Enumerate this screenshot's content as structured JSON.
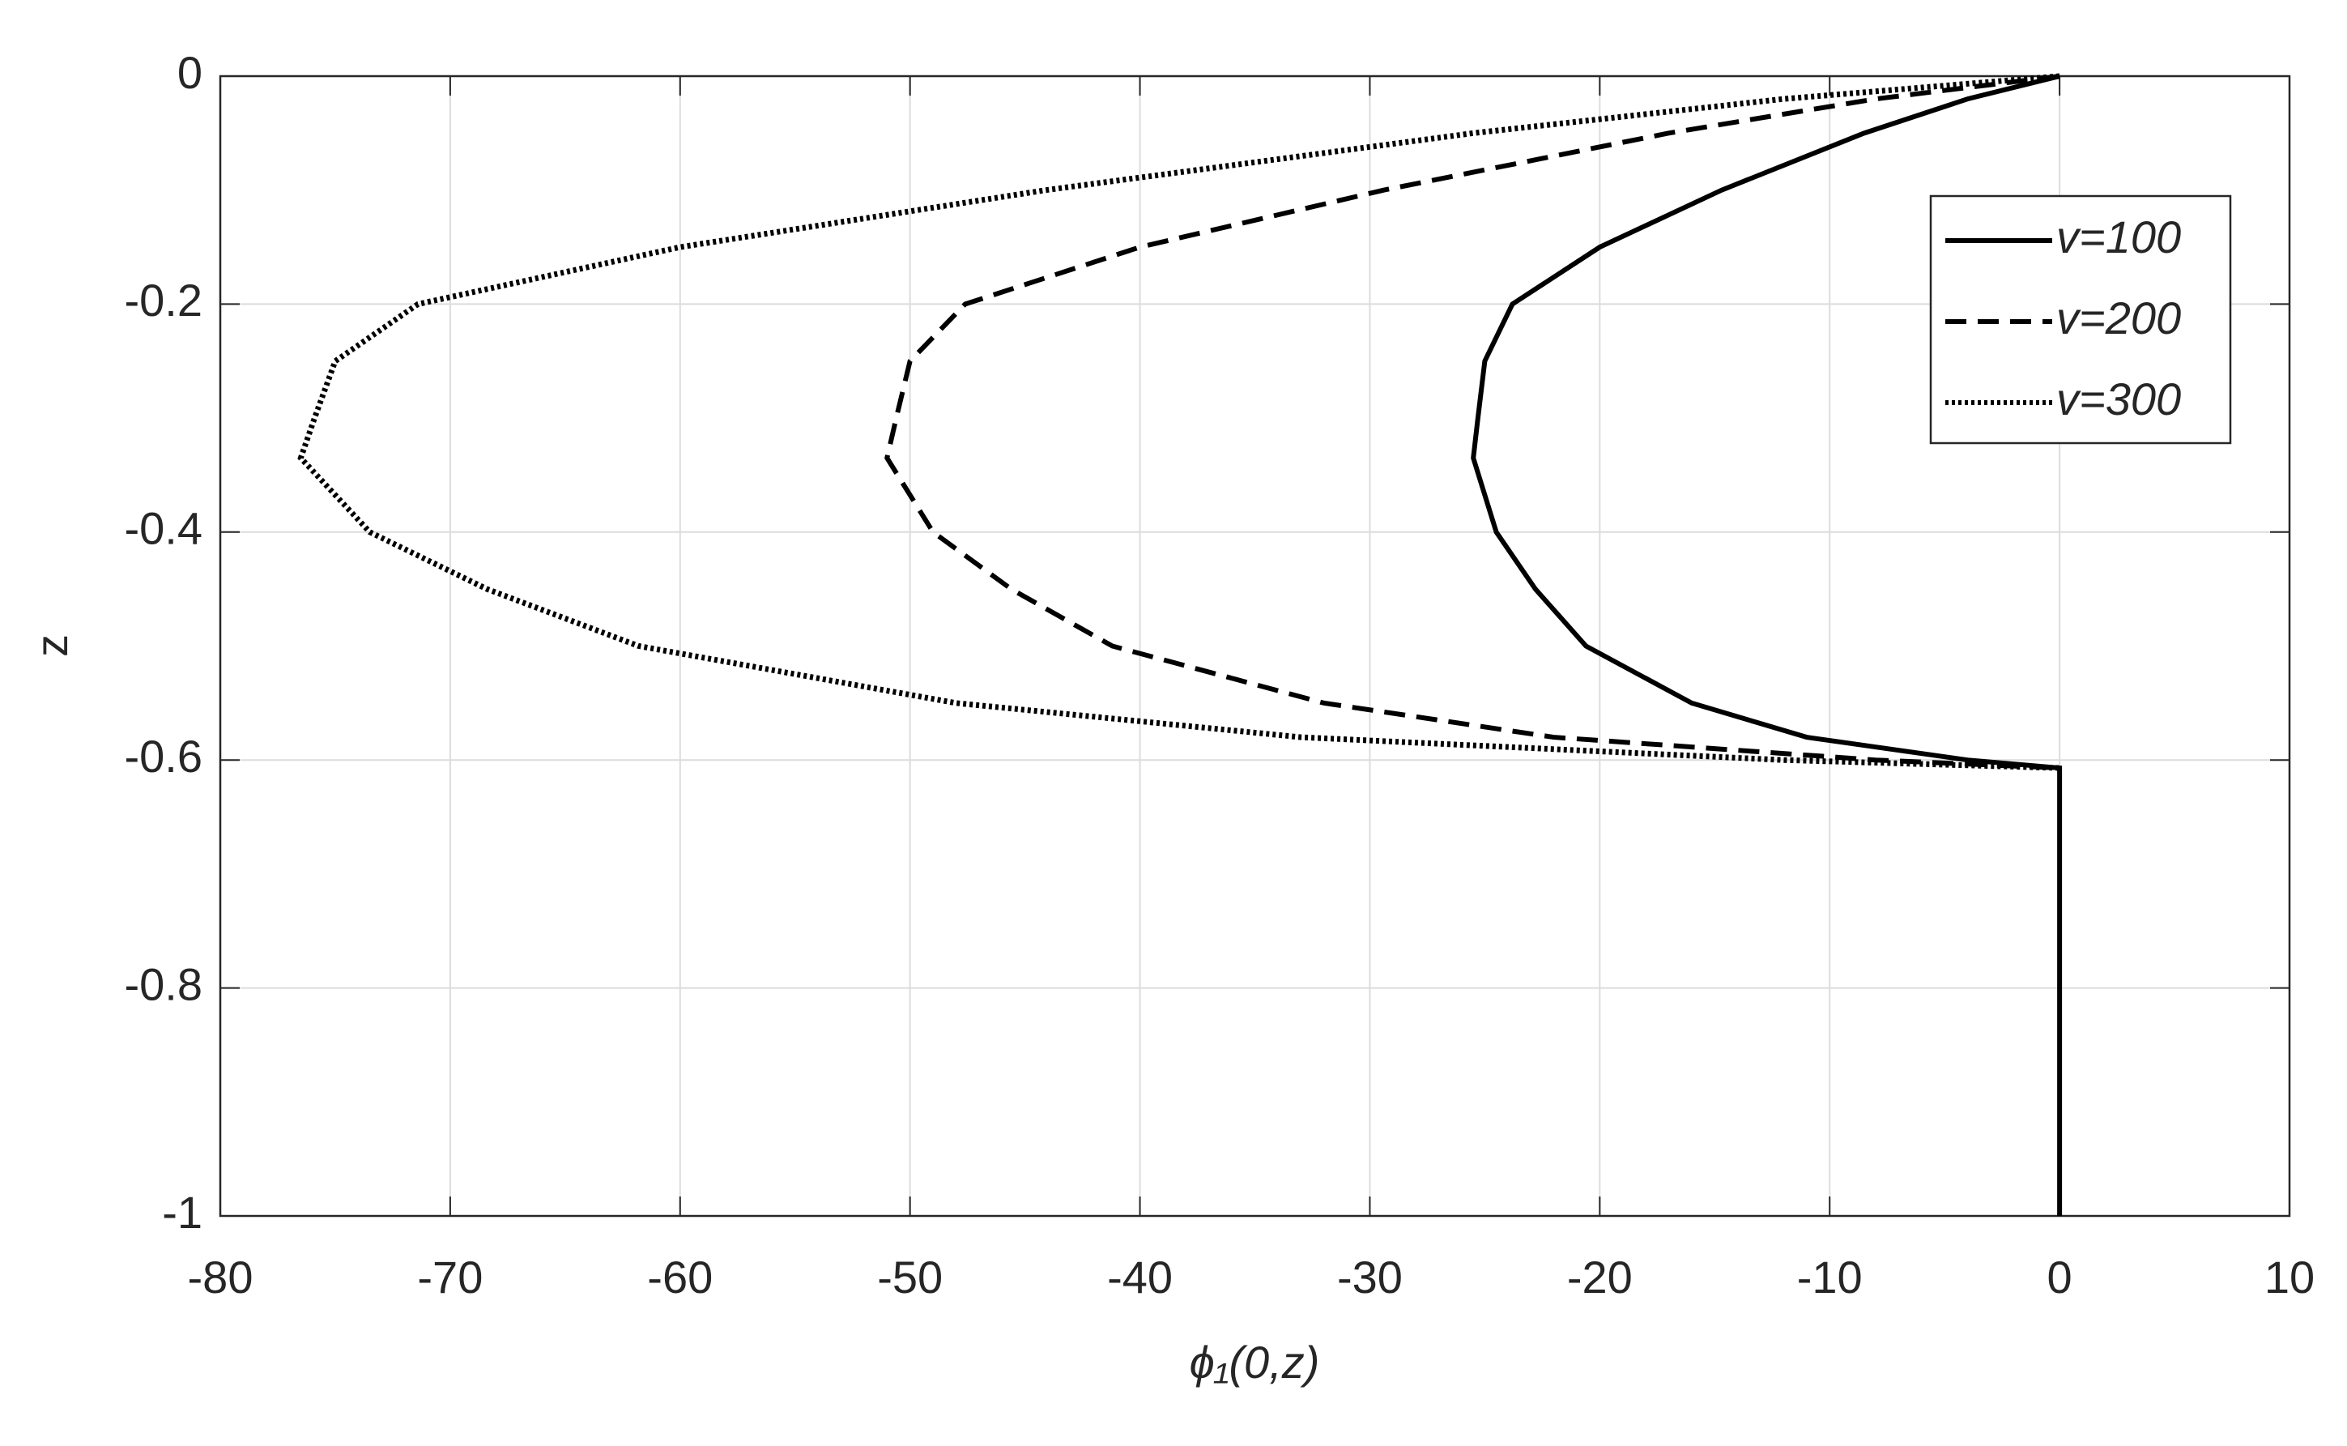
{
  "chart_data": {
    "type": "line",
    "xlabel": "ϕ₁(0,z)",
    "ylabel": "z",
    "xlim": [
      -80,
      10
    ],
    "xticks": [
      -80,
      -70,
      -60,
      -50,
      -40,
      -30,
      -20,
      -10,
      0,
      10
    ],
    "ylim": [
      -1,
      0
    ],
    "yticks": [
      -1,
      -0.8,
      -0.6,
      -0.4,
      -0.2,
      0
    ],
    "grid": true,
    "legend": "upper right",
    "series": [
      {
        "name": "v=100",
        "color": "#000000",
        "dash": "solid",
        "x": [
          0,
          -4,
          -8.5,
          -14.7,
          -20,
          -23.8,
          -25,
          -25.3,
          -25.5,
          -24.5,
          -22.8,
          -20.6,
          -16,
          -11,
          -4,
          0,
          0,
          0,
          0
        ],
        "y": [
          0,
          -0.02,
          -0.05,
          -0.1,
          -0.15,
          -0.2,
          -0.25,
          -0.3,
          -0.335,
          -0.4,
          -0.45,
          -0.5,
          -0.55,
          -0.58,
          -0.6,
          -0.607,
          -0.65,
          -0.8,
          -1
        ]
      },
      {
        "name": "v=200",
        "color": "#000000",
        "dash": "dashed",
        "x": [
          0,
          -8,
          -17,
          -29.4,
          -40,
          -47.6,
          -50,
          -50.6,
          -51,
          -49,
          -45.6,
          -41.2,
          -32,
          -22,
          -8,
          0
        ],
        "y": [
          0,
          -0.02,
          -0.05,
          -0.1,
          -0.15,
          -0.2,
          -0.25,
          -0.3,
          -0.335,
          -0.4,
          -0.45,
          -0.5,
          -0.55,
          -0.58,
          -0.6,
          -0.607
        ]
      },
      {
        "name": "v=300",
        "color": "#000000",
        "dash": "dotted",
        "x": [
          0,
          -12,
          -25.5,
          -44.1,
          -60,
          -71.4,
          -75,
          -75.9,
          -76.5,
          -73.5,
          -68.4,
          -61.8,
          -48,
          -33,
          -12,
          0
        ],
        "y": [
          0,
          -0.02,
          -0.05,
          -0.1,
          -0.15,
          -0.2,
          -0.25,
          -0.3,
          -0.335,
          -0.4,
          -0.45,
          -0.5,
          -0.55,
          -0.58,
          -0.6,
          -0.607
        ]
      }
    ]
  }
}
